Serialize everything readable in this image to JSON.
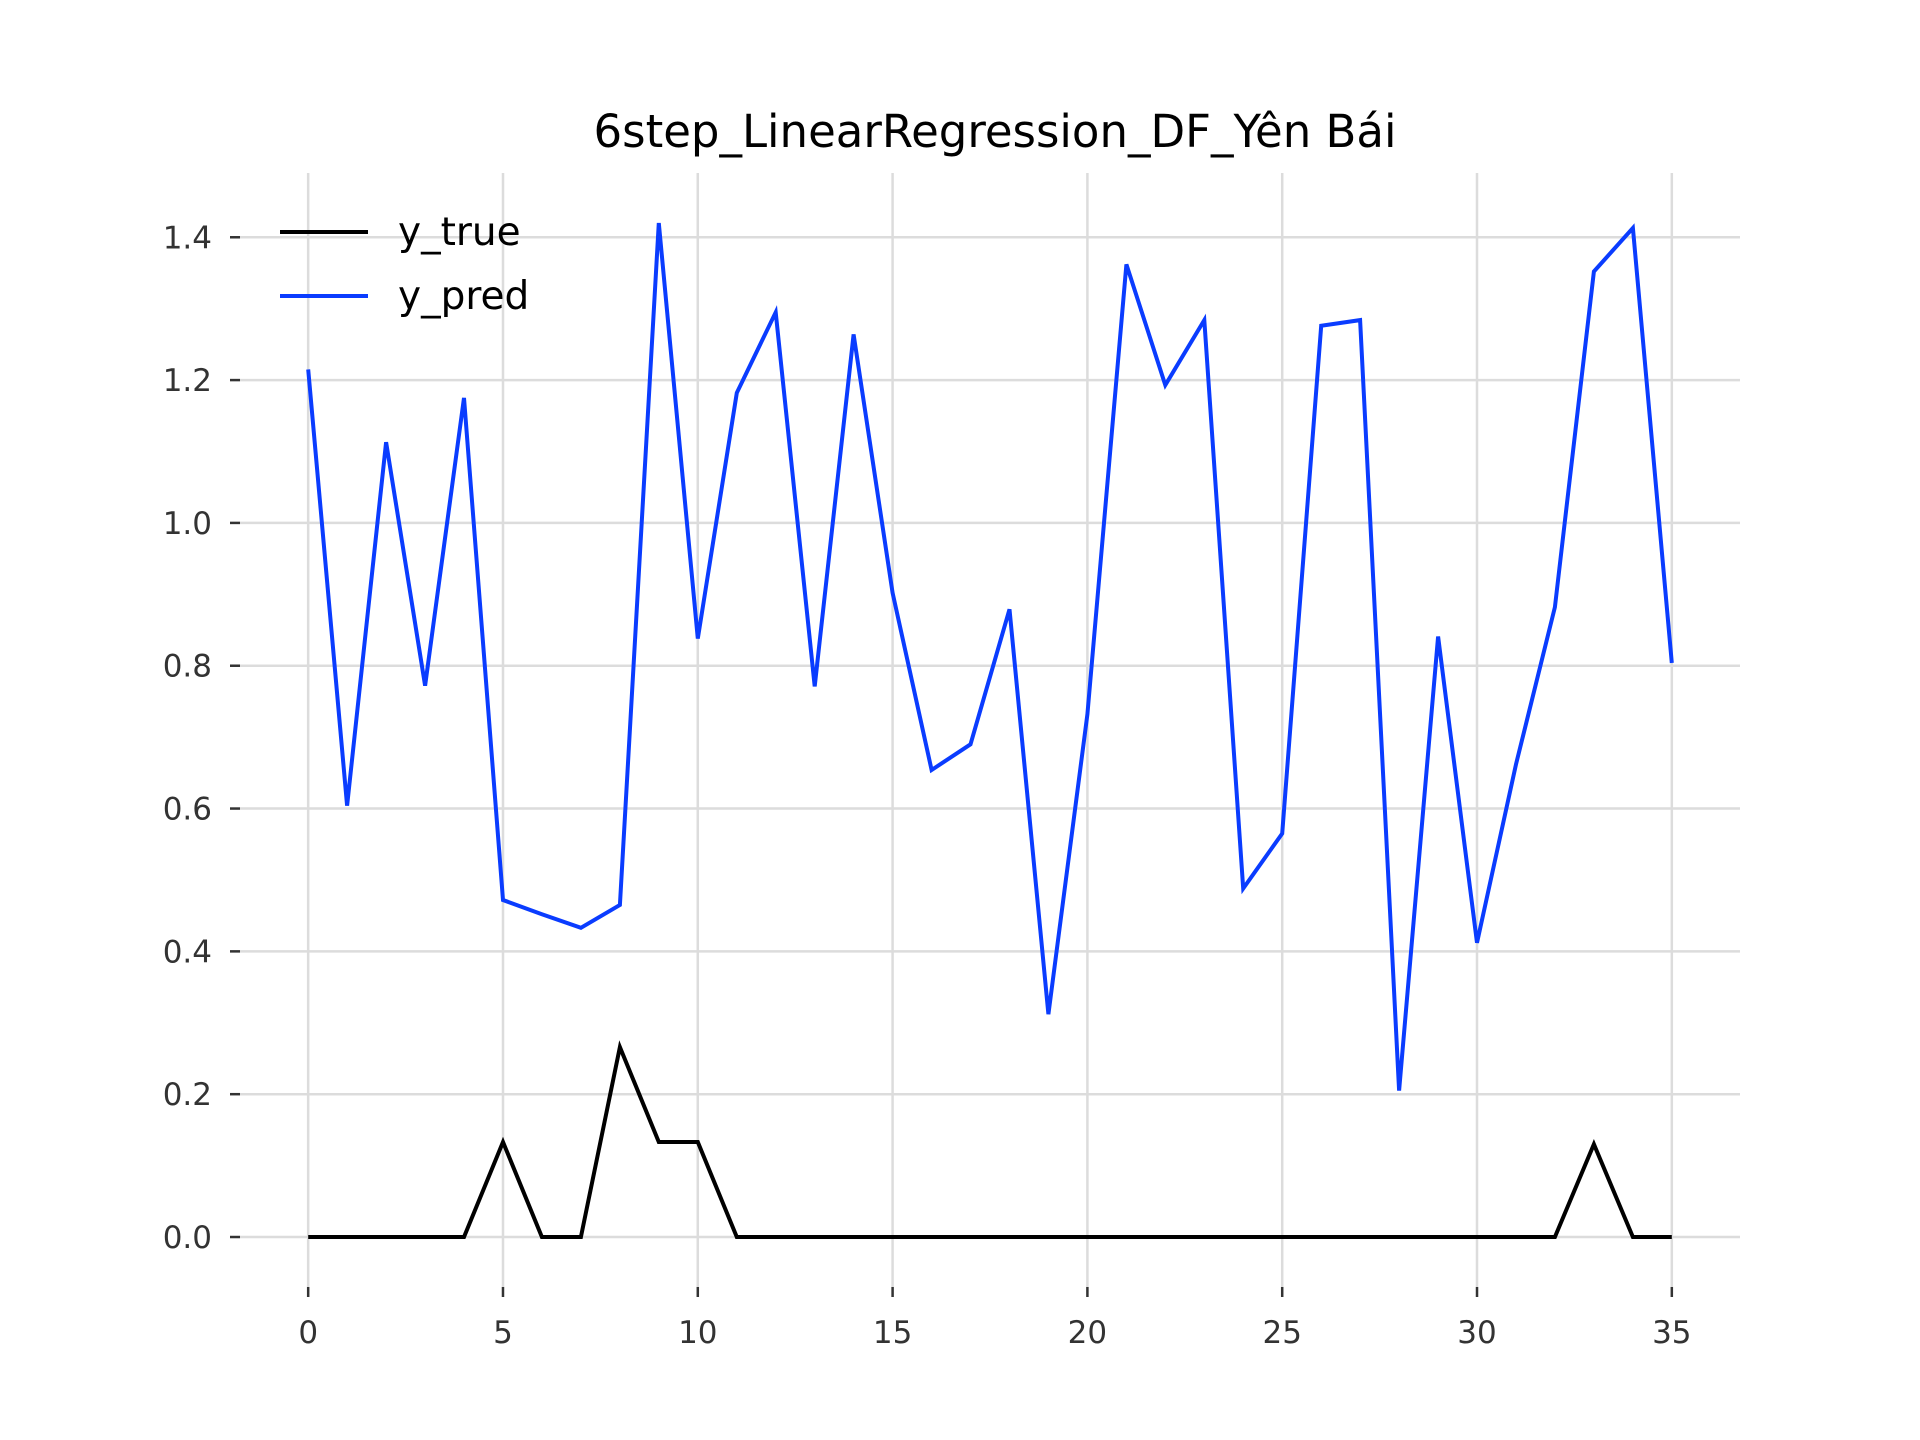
{
  "chart_data": {
    "type": "line",
    "title": "6step_LinearRegression_DF_Yên Bái",
    "xlabel": "",
    "ylabel": "",
    "xlim": [
      -1.75,
      36.75
    ],
    "ylim": [
      -0.07,
      1.49
    ],
    "xticks": [
      0,
      5,
      10,
      15,
      20,
      25,
      30,
      35
    ],
    "yticks": [
      0.0,
      0.2,
      0.4,
      0.6,
      0.8,
      1.0,
      1.2,
      1.4
    ],
    "ytick_labels": [
      "0.0",
      "0.2",
      "0.4",
      "0.6",
      "0.8",
      "1.0",
      "1.2",
      "1.4"
    ],
    "grid": true,
    "legend_position": "top-left",
    "x": [
      0,
      1,
      2,
      3,
      4,
      5,
      6,
      7,
      8,
      9,
      10,
      11,
      12,
      13,
      14,
      15,
      16,
      17,
      18,
      19,
      20,
      21,
      22,
      23,
      24,
      25,
      26,
      27,
      28,
      29,
      30,
      31,
      32,
      33,
      34,
      35
    ],
    "series": [
      {
        "name": "y_true",
        "color": "#000000",
        "values": [
          0,
          0,
          0,
          0,
          0,
          0.133,
          0,
          0,
          0.266,
          0.133,
          0.133,
          0,
          0,
          0,
          0,
          0,
          0,
          0,
          0,
          0,
          0,
          0,
          0,
          0,
          0,
          0,
          0,
          0,
          0,
          0,
          0,
          0,
          0,
          0.13,
          0,
          0
        ]
      },
      {
        "name": "y_pred",
        "color": "#0a3cff",
        "values": [
          1.215,
          0.604,
          1.113,
          0.772,
          1.175,
          0.472,
          0.452,
          0.433,
          0.465,
          1.42,
          0.838,
          1.182,
          1.295,
          0.771,
          1.264,
          0.902,
          0.654,
          0.69,
          0.879,
          0.312,
          0.732,
          1.362,
          1.193,
          1.284,
          0.488,
          0.565,
          1.276,
          1.284,
          0.205,
          0.841,
          0.412,
          0.662,
          0.882,
          1.352,
          1.413,
          0.804
        ]
      }
    ]
  }
}
